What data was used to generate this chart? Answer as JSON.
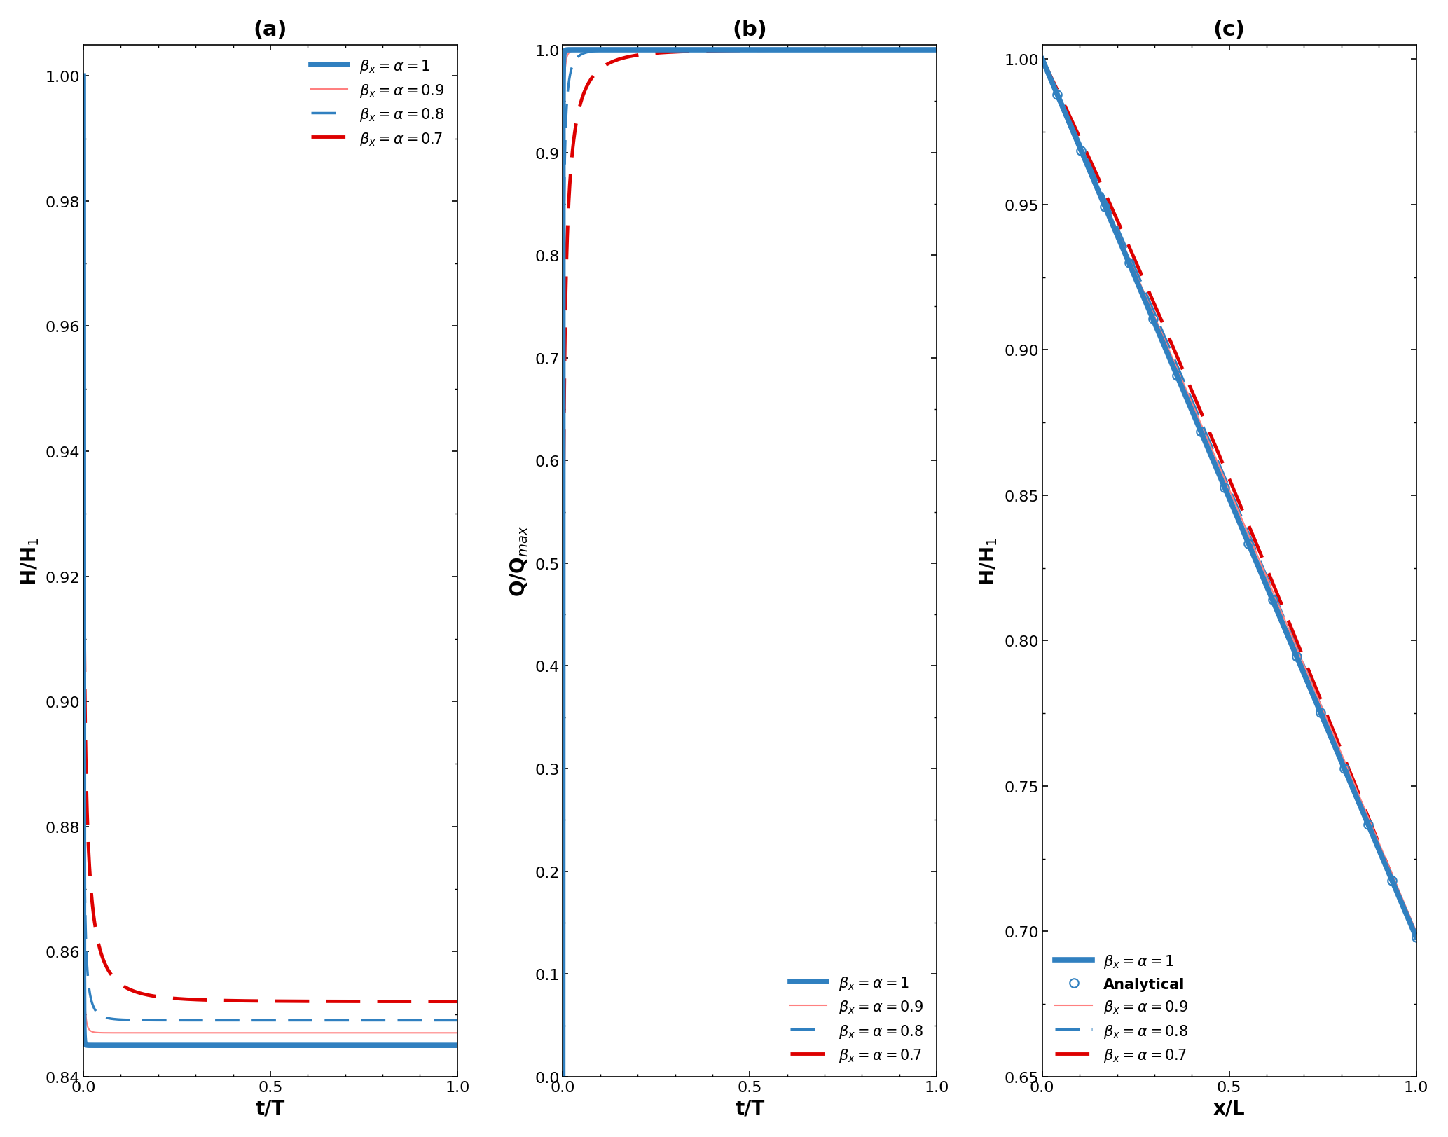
{
  "title_a": "(a)",
  "title_b": "(b)",
  "title_c": "(c)",
  "xlabel_a": "t/T",
  "xlabel_b": "t/T",
  "xlabel_c": "x/L",
  "ylabel_a": "H/H$_1$",
  "ylabel_b": "Q/Q$_{max}$",
  "ylabel_c": "H/H$_1$",
  "ylim_a": [
    0.84,
    1.005
  ],
  "ylim_b": [
    0.0,
    1.005
  ],
  "ylim_c": [
    0.65,
    1.005
  ],
  "xlim_a": [
    0,
    1
  ],
  "xlim_b": [
    0,
    1
  ],
  "xlim_c": [
    0,
    1
  ],
  "yticks_a": [
    0.84,
    0.86,
    0.88,
    0.9,
    0.92,
    0.94,
    0.96,
    0.98,
    1.0
  ],
  "yticks_b": [
    0.0,
    0.1,
    0.2,
    0.3,
    0.4,
    0.5,
    0.6,
    0.7,
    0.8,
    0.9,
    1.0
  ],
  "yticks_c": [
    0.65,
    0.7,
    0.75,
    0.8,
    0.85,
    0.9,
    0.95,
    1.0
  ],
  "xticks_a": [
    0,
    0.5,
    1
  ],
  "xticks_b": [
    0,
    0.5,
    1
  ],
  "xticks_c": [
    0,
    0.5,
    1
  ],
  "color_blue": "#3080C0",
  "color_red": "#DD0000",
  "color_red_thin": "#FF8080",
  "background": "#ffffff"
}
